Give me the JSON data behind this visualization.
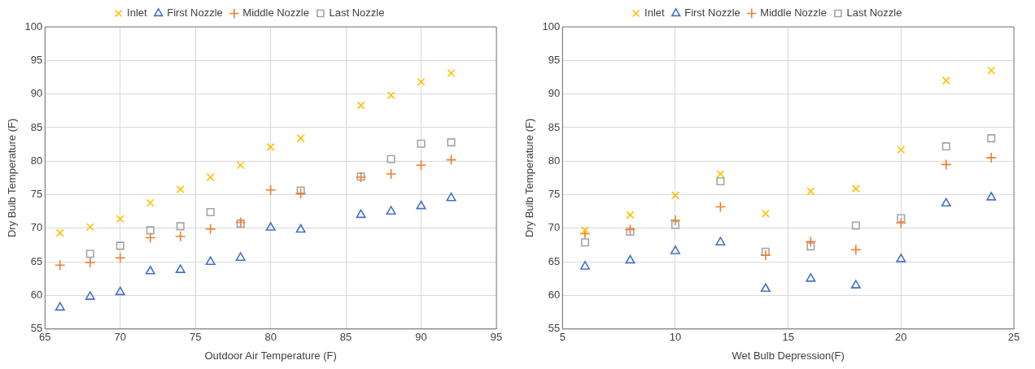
{
  "chart_data": [
    {
      "type": "scatter",
      "xlabel": "Outdoor Air Temperature (F)",
      "ylabel": "Dry Bulb Temperature (F)",
      "xlim": [
        65,
        95
      ],
      "xticks": [
        65,
        70,
        75,
        80,
        85,
        90,
        95
      ],
      "ylim": [
        55,
        100
      ],
      "yticks": [
        55,
        60,
        65,
        70,
        75,
        80,
        85,
        90,
        95,
        100
      ],
      "grid": true,
      "legend": "top",
      "series": [
        {
          "name": "Inlet",
          "color": "#ffc000",
          "marker": "cross",
          "x": [
            66,
            68,
            70,
            72,
            74,
            76,
            78,
            80,
            82,
            86,
            88,
            90,
            92
          ],
          "values": [
            69.3,
            70.2,
            71.4,
            73.8,
            75.8,
            77.6,
            79.4,
            82.1,
            83.4,
            88.3,
            89.8,
            91.8,
            93.1
          ]
        },
        {
          "name": "First Nozzle",
          "color": "#4472c4",
          "marker": "triangle",
          "x": [
            66,
            68,
            70,
            72,
            74,
            76,
            78,
            80,
            82,
            86,
            88,
            90,
            92
          ],
          "values": [
            58.2,
            59.8,
            60.5,
            63.6,
            63.8,
            65.0,
            65.6,
            70.1,
            69.8,
            72.0,
            72.5,
            73.3,
            74.5
          ]
        },
        {
          "name": "Middle Nozzle",
          "color": "#ed7d31",
          "marker": "plus",
          "x": [
            66,
            68,
            70,
            72,
            74,
            76,
            78,
            80,
            82,
            86,
            88,
            90,
            92
          ],
          "values": [
            64.5,
            64.9,
            65.6,
            68.6,
            68.8,
            69.9,
            70.9,
            75.7,
            75.2,
            77.6,
            78.1,
            79.4,
            80.2
          ]
        },
        {
          "name": "Last Nozzle",
          "color": "#a5a5a5",
          "marker": "square",
          "x": [
            68,
            70,
            72,
            74,
            76,
            78,
            82,
            86,
            88,
            90,
            92
          ],
          "values": [
            66.2,
            67.4,
            69.7,
            70.3,
            72.4,
            70.7,
            75.6,
            77.7,
            80.3,
            82.6,
            82.8
          ]
        }
      ]
    },
    {
      "type": "scatter",
      "xlabel": "Wet Bulb Depression(F)",
      "ylabel": "Dry Bulb Temperature (F)",
      "xlim": [
        5,
        25
      ],
      "xticks": [
        5,
        10,
        15,
        20,
        25
      ],
      "ylim": [
        55,
        100
      ],
      "yticks": [
        55,
        60,
        65,
        70,
        75,
        80,
        85,
        90,
        95,
        100
      ],
      "grid": true,
      "legend": "top",
      "series": [
        {
          "name": "Inlet",
          "color": "#ffc000",
          "marker": "cross",
          "x": [
            6,
            8,
            10,
            12,
            14,
            16,
            18,
            20,
            22,
            24
          ],
          "values": [
            69.7,
            72.0,
            74.9,
            78.1,
            72.2,
            75.5,
            75.9,
            81.7,
            92.0,
            93.5
          ]
        },
        {
          "name": "First Nozzle",
          "color": "#4472c4",
          "marker": "triangle",
          "x": [
            6,
            8,
            10,
            12,
            14,
            16,
            18,
            20,
            22,
            24
          ],
          "values": [
            64.3,
            65.2,
            66.6,
            67.9,
            61.0,
            62.5,
            61.5,
            65.4,
            73.7,
            74.6
          ]
        },
        {
          "name": "Middle Nozzle",
          "color": "#ed7d31",
          "marker": "plus",
          "x": [
            6,
            8,
            10,
            12,
            14,
            16,
            18,
            20,
            22,
            24
          ],
          "values": [
            69.2,
            69.8,
            71.2,
            73.2,
            66.0,
            68.0,
            66.8,
            70.8,
            79.5,
            80.5
          ]
        },
        {
          "name": "Last Nozzle",
          "color": "#a5a5a5",
          "marker": "square",
          "x": [
            6,
            8,
            10,
            12,
            14,
            16,
            18,
            20,
            22,
            24
          ],
          "values": [
            67.9,
            69.5,
            70.5,
            77.0,
            66.5,
            67.3,
            70.4,
            71.5,
            82.2,
            83.4
          ]
        }
      ]
    }
  ]
}
